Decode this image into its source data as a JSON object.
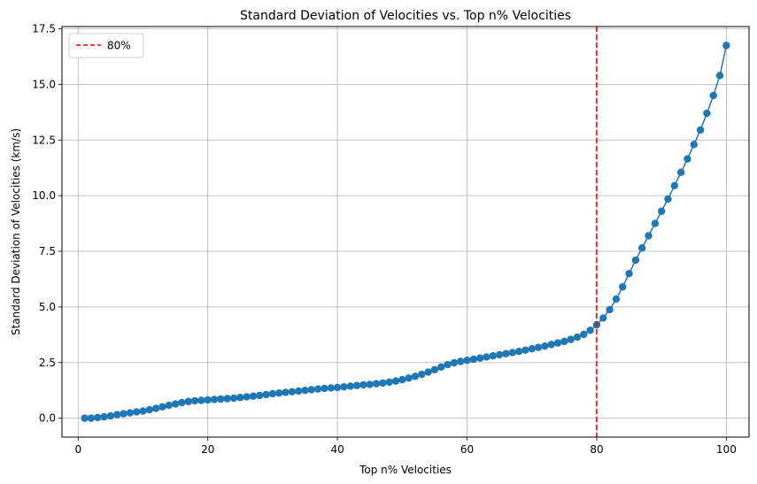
{
  "chart_data": {
    "type": "line",
    "title": "Standard Deviation of Velocities vs. Top n% Velocities",
    "xlabel": "Top n% Velocities",
    "ylabel": "Standard Deviation of Velocities (km/s)",
    "xlim": [
      -2.5,
      103.5
    ],
    "ylim": [
      -0.85,
      17.6
    ],
    "xticks": [
      0,
      20,
      40,
      60,
      80,
      100
    ],
    "xtick_labels": [
      "0",
      "20",
      "40",
      "60",
      "80",
      "100"
    ],
    "yticks": [
      0,
      2.5,
      5,
      7.5,
      10,
      12.5,
      15,
      17.5
    ],
    "ytick_labels": [
      "0.0",
      "2.5",
      "5.0",
      "7.5",
      "10.0",
      "12.5",
      "15.0",
      "17.5"
    ],
    "grid": true,
    "legend_position": "top-left",
    "series": [
      {
        "color": "#1f77b4",
        "marker": "circle",
        "x": [
          1,
          2,
          3,
          4,
          5,
          6,
          7,
          8,
          9,
          10,
          11,
          12,
          13,
          14,
          15,
          16,
          17,
          18,
          19,
          20,
          21,
          22,
          23,
          24,
          25,
          26,
          27,
          28,
          29,
          30,
          31,
          32,
          33,
          34,
          35,
          36,
          37,
          38,
          39,
          40,
          41,
          42,
          43,
          44,
          45,
          46,
          47,
          48,
          49,
          50,
          51,
          52,
          53,
          54,
          55,
          56,
          57,
          58,
          59,
          60,
          61,
          62,
          63,
          64,
          65,
          66,
          67,
          68,
          69,
          70,
          71,
          72,
          73,
          74,
          75,
          76,
          77,
          78,
          79,
          80,
          81,
          82,
          83,
          84,
          85,
          86,
          87,
          88,
          89,
          90,
          91,
          92,
          93,
          94,
          95,
          96,
          97,
          98,
          99,
          100
        ],
        "y": [
          0.0,
          0.0,
          0.03,
          0.06,
          0.1,
          0.16,
          0.2,
          0.24,
          0.28,
          0.32,
          0.38,
          0.44,
          0.51,
          0.58,
          0.64,
          0.7,
          0.75,
          0.78,
          0.8,
          0.82,
          0.84,
          0.86,
          0.88,
          0.9,
          0.93,
          0.96,
          0.99,
          1.02,
          1.06,
          1.1,
          1.13,
          1.16,
          1.19,
          1.22,
          1.25,
          1.28,
          1.31,
          1.34,
          1.36,
          1.38,
          1.41,
          1.44,
          1.47,
          1.5,
          1.52,
          1.55,
          1.58,
          1.62,
          1.67,
          1.73,
          1.8,
          1.88,
          1.97,
          2.07,
          2.18,
          2.3,
          2.41,
          2.49,
          2.55,
          2.6,
          2.65,
          2.7,
          2.75,
          2.8,
          2.85,
          2.9,
          2.95,
          3.0,
          3.06,
          3.12,
          3.18,
          3.24,
          3.31,
          3.38,
          3.45,
          3.54,
          3.64,
          3.77,
          3.95,
          4.2,
          4.5,
          4.88,
          5.35,
          5.9,
          6.5,
          7.1,
          7.65,
          8.2,
          8.75,
          9.3,
          9.85,
          10.45,
          11.05,
          11.65,
          12.3,
          12.95,
          13.7,
          14.5,
          15.4,
          16.75
        ]
      },
      {
        "name": "80%",
        "type": "vline",
        "x": 80,
        "color": "#ff0000",
        "linestyle": "dashed"
      }
    ]
  }
}
